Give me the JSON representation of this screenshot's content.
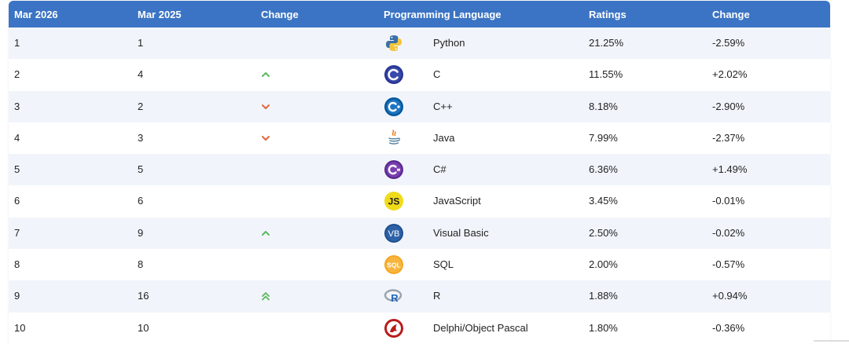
{
  "headers": {
    "mar2026": "Mar 2026",
    "mar2025": "Mar 2025",
    "change": "Change",
    "language": "Programming Language",
    "ratings": "Ratings",
    "change2": "Change"
  },
  "rows": [
    {
      "rank": "1",
      "prev": "1",
      "trend": "none",
      "lang": "Python",
      "logo": "python-logo-icon",
      "rating": "21.25%",
      "change": "-2.59%"
    },
    {
      "rank": "2",
      "prev": "4",
      "trend": "up",
      "lang": "C",
      "logo": "c-logo-icon",
      "rating": "11.55%",
      "change": "+2.02%"
    },
    {
      "rank": "3",
      "prev": "2",
      "trend": "down",
      "lang": "C++",
      "logo": "cpp-logo-icon",
      "rating": "8.18%",
      "change": "-2.90%"
    },
    {
      "rank": "4",
      "prev": "3",
      "trend": "down",
      "lang": "Java",
      "logo": "java-logo-icon",
      "rating": "7.99%",
      "change": "-2.37%"
    },
    {
      "rank": "5",
      "prev": "5",
      "trend": "none",
      "lang": "C#",
      "logo": "csharp-logo-icon",
      "rating": "6.36%",
      "change": "+1.49%"
    },
    {
      "rank": "6",
      "prev": "6",
      "trend": "none",
      "lang": "JavaScript",
      "logo": "javascript-logo-icon",
      "logo_text": "JS",
      "rating": "3.45%",
      "change": "-0.01%"
    },
    {
      "rank": "7",
      "prev": "9",
      "trend": "up",
      "lang": "Visual Basic",
      "logo": "visual-basic-logo-icon",
      "logo_text": "VB",
      "rating": "2.50%",
      "change": "-0.02%"
    },
    {
      "rank": "8",
      "prev": "8",
      "trend": "none",
      "lang": "SQL",
      "logo": "sql-logo-icon",
      "logo_text": "SQL",
      "rating": "2.00%",
      "change": "-0.57%"
    },
    {
      "rank": "9",
      "prev": "16",
      "trend": "double-up",
      "lang": "R",
      "logo": "r-logo-icon",
      "logo_text": "R",
      "rating": "1.88%",
      "change": "+0.94%"
    },
    {
      "rank": "10",
      "prev": "10",
      "trend": "none",
      "lang": "Delphi/Object Pascal",
      "logo": "delphi-logo-icon",
      "rating": "1.80%",
      "change": "-0.36%"
    }
  ],
  "colors": {
    "header": "#3b74c4",
    "up": "#5cb85c",
    "down": "#e0663a"
  }
}
